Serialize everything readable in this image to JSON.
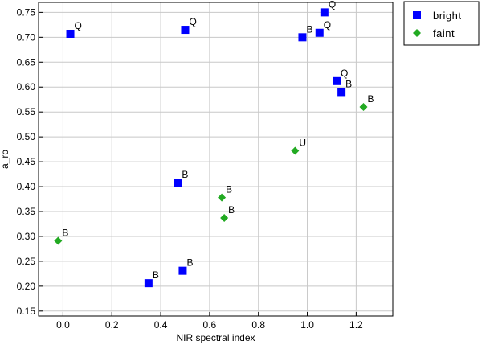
{
  "chart_data": {
    "type": "scatter",
    "title": "",
    "xlabel": "NIR spectral index",
    "ylabel": "a_ro",
    "xlim": [
      -0.1,
      1.35
    ],
    "ylim": [
      0.14,
      0.77
    ],
    "xticks": [
      0.0,
      0.2,
      0.4,
      0.6,
      0.8,
      1.0,
      1.2
    ],
    "xtick_labels": [
      "0.0",
      "0.2",
      "0.4",
      "0.6",
      "0.8",
      "1.0",
      "1.2"
    ],
    "yticks": [
      0.15,
      0.2,
      0.25,
      0.3,
      0.35,
      0.4,
      0.45,
      0.5,
      0.55,
      0.6,
      0.65,
      0.7,
      0.75
    ],
    "ytick_labels": [
      "0.15",
      "0.20",
      "0.25",
      "0.30",
      "0.35",
      "0.40",
      "0.45",
      "0.50",
      "0.55",
      "0.60",
      "0.65",
      "0.70",
      "0.75"
    ],
    "grid": true,
    "legend_position": "outside-top-right",
    "series": [
      {
        "name": "bright",
        "marker": "square",
        "color": "#0000ff",
        "points": [
          {
            "x": 0.03,
            "y": 0.707,
            "label": "Q"
          },
          {
            "x": 0.5,
            "y": 0.715,
            "label": "Q"
          },
          {
            "x": 0.98,
            "y": 0.7,
            "label": "B"
          },
          {
            "x": 1.05,
            "y": 0.709,
            "label": "Q"
          },
          {
            "x": 1.07,
            "y": 0.75,
            "label": "Q"
          },
          {
            "x": 1.12,
            "y": 0.612,
            "label": "Q"
          },
          {
            "x": 1.14,
            "y": 0.59,
            "label": "B"
          },
          {
            "x": 0.47,
            "y": 0.408,
            "label": "B"
          },
          {
            "x": 0.49,
            "y": 0.231,
            "label": "B"
          },
          {
            "x": 0.35,
            "y": 0.206,
            "label": "B"
          }
        ]
      },
      {
        "name": "faint",
        "marker": "diamond",
        "color": "#22aa22",
        "points": [
          {
            "x": -0.02,
            "y": 0.291,
            "label": "B"
          },
          {
            "x": 0.65,
            "y": 0.378,
            "label": "B"
          },
          {
            "x": 0.66,
            "y": 0.337,
            "label": "B"
          },
          {
            "x": 0.95,
            "y": 0.472,
            "label": "U"
          },
          {
            "x": 1.23,
            "y": 0.56,
            "label": "B"
          }
        ]
      }
    ]
  }
}
